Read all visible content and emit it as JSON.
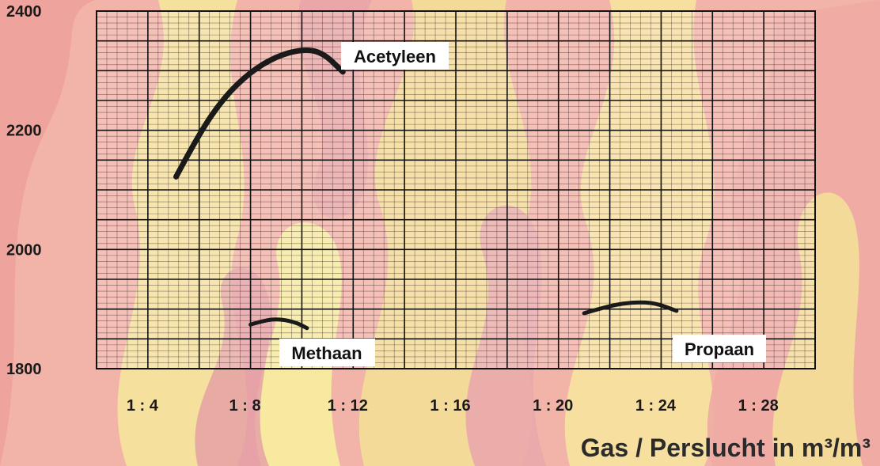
{
  "chart_data": {
    "type": "line",
    "xlabel": "Gas / Perslucht in m³/m³",
    "ylabel": "",
    "categories": [
      "1 : 4",
      "1 : 8",
      "1 : 12",
      "1 : 16",
      "1 : 20",
      "1 : 24",
      "1 : 28"
    ],
    "x_ratio_values": [
      4,
      8,
      12,
      16,
      20,
      24,
      28
    ],
    "xlim": [
      2,
      30
    ],
    "ylim": [
      1800,
      2400
    ],
    "yticks": [
      1800,
      2000,
      2200,
      2400
    ],
    "ytick_labels": [
      "1800",
      "2000",
      "2200",
      "2400"
    ],
    "grid": true,
    "series": [
      {
        "name": "Acetyleen",
        "color": "#1a1a1a",
        "x": [
          5.1,
          6.0,
          7.0,
          8.0,
          9.0,
          10.0,
          10.8,
          11.6
        ],
        "y": [
          2122,
          2195,
          2257,
          2298,
          2324,
          2336,
          2331,
          2298
        ]
      },
      {
        "name": "Methaan",
        "color": "#1a1a1a",
        "x": [
          8.0,
          8.6,
          9.2,
          9.8,
          10.2
        ],
        "y": [
          1874,
          1882,
          1883,
          1877,
          1868
        ]
      },
      {
        "name": "Propaan",
        "color": "#1a1a1a",
        "x": [
          21.0,
          22.0,
          23.0,
          23.8,
          24.6
        ],
        "y": [
          1893,
          1906,
          1912,
          1910,
          1897
        ]
      }
    ]
  },
  "colors": {
    "background_red": "#f3b7ad",
    "flame_yellow": "#f7eb9a",
    "flame_pink": "#e8a9ad",
    "grid_line": "#1a1a1a"
  }
}
